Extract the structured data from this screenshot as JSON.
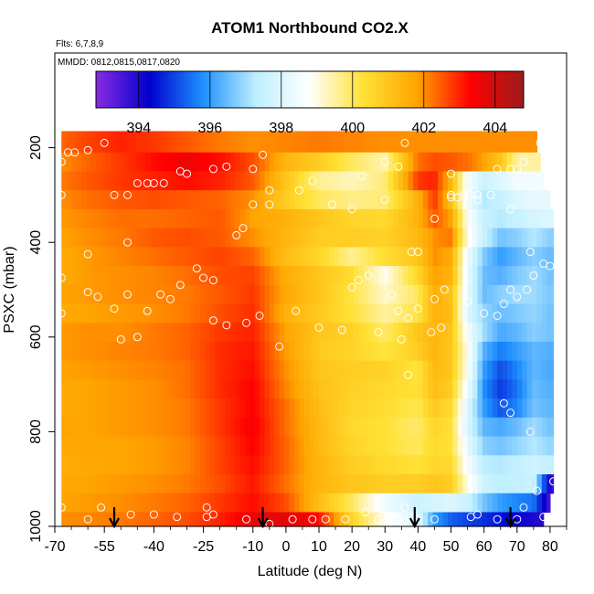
{
  "chart_data": {
    "type": "heatmap",
    "title": "ATOM1 Northbound CO2.X",
    "subtitle_flights": "Flts: 6,7,8,9",
    "subtitle_dates": "MMDD: 0812,0815,0817,0820",
    "xlabel": "Latitude (deg N)",
    "ylabel": "PSXC (mbar)",
    "xlim": [
      -70,
      85
    ],
    "ylim": [
      1000,
      0
    ],
    "x_ticks": [
      -70,
      -55,
      -40,
      -25,
      -10,
      0,
      10,
      20,
      30,
      40,
      50,
      60,
      70,
      80
    ],
    "y_ticks": [
      200,
      400,
      600,
      800,
      1000
    ],
    "colorbar": {
      "min": 392.8,
      "max": 404.8,
      "ticks": [
        394,
        396,
        398,
        400,
        402,
        404
      ],
      "colors": [
        "#8a2be2",
        "#0000cd",
        "#1e90ff",
        "#bfefff",
        "#ffffff",
        "#ffe135",
        "#ffa500",
        "#ff0000",
        "#9b1c1c"
      ]
    },
    "pressure_levels": [
      190,
      230,
      270,
      310,
      350,
      390,
      430,
      470,
      510,
      550,
      590,
      630,
      670,
      710,
      750,
      790,
      830,
      870,
      910,
      950,
      990
    ],
    "latitude_knots": [
      -68,
      -60,
      -50,
      -40,
      -30,
      -20,
      -10,
      0,
      10,
      20,
      30,
      40,
      45,
      50,
      55,
      60,
      65,
      70,
      75,
      80
    ],
    "co2_rows": [
      [
        402.4,
        402.7,
        403.0,
        402.8,
        402.5,
        402.2,
        402.0,
        402.1,
        402.2,
        402.1,
        402.0,
        402.0,
        402.0,
        402.0,
        402.0,
        402.0,
        402.0,
        402.0,
        402.0,
        402.0
      ],
      [
        402.0,
        402.4,
        402.8,
        403.2,
        403.5,
        403.2,
        402.6,
        401.4,
        400.8,
        400.0,
        399.4,
        402.3,
        402.6,
        402.5,
        402.3,
        401.8,
        401.0,
        399.5,
        399.5,
        399.5
      ],
      [
        402.2,
        402.5,
        402.8,
        403.0,
        403.2,
        403.0,
        402.5,
        401.0,
        399.6,
        399.3,
        399.8,
        402.8,
        403.0,
        401.4,
        398.6,
        397.6,
        398.0,
        398.5,
        398.5,
        398.5
      ],
      [
        402.0,
        402.3,
        402.5,
        402.6,
        402.5,
        402.4,
        402.0,
        400.8,
        400.0,
        399.7,
        399.8,
        401.5,
        402.8,
        401.2,
        398.5,
        397.2,
        397.5,
        398.0,
        398.2,
        398.2
      ],
      [
        401.9,
        402.1,
        402.3,
        402.3,
        402.4,
        402.5,
        401.8,
        401.5,
        401.0,
        400.6,
        400.5,
        401.5,
        402.5,
        401.8,
        398.8,
        397.5,
        397.2,
        397.5,
        397.8,
        398.0
      ],
      [
        401.8,
        402.0,
        402.2,
        402.5,
        402.6,
        402.5,
        402.0,
        401.4,
        400.8,
        400.8,
        400.7,
        401.3,
        402.0,
        402.2,
        399.0,
        397.5,
        396.6,
        396.8,
        397.2,
        396.8
      ],
      [
        401.7,
        401.9,
        402.1,
        402.3,
        402.5,
        402.7,
        402.4,
        401.2,
        400.6,
        399.6,
        400.4,
        401.0,
        402.0,
        401.7,
        398.4,
        396.7,
        396.0,
        396.4,
        396.8,
        396.5
      ],
      [
        401.7,
        401.9,
        402.0,
        402.1,
        402.3,
        402.6,
        402.7,
        401.6,
        401.0,
        400.4,
        398.9,
        400.6,
        401.8,
        401.5,
        398.3,
        396.5,
        396.3,
        396.7,
        397.0,
        396.6
      ],
      [
        401.8,
        401.9,
        402.0,
        402.1,
        402.2,
        402.5,
        402.8,
        401.7,
        401.0,
        400.2,
        399.2,
        400.0,
        401.6,
        401.1,
        398.2,
        396.5,
        396.8,
        397.0,
        397.0,
        396.7
      ],
      [
        401.7,
        401.8,
        401.9,
        402.0,
        402.2,
        402.6,
        402.9,
        401.5,
        400.9,
        400.3,
        399.5,
        400.2,
        401.5,
        401.2,
        398.0,
        396.9,
        396.5,
        396.7,
        396.9,
        396.6
      ],
      [
        401.9,
        402.0,
        402.0,
        402.2,
        402.4,
        402.8,
        403.0,
        401.8,
        401.0,
        400.7,
        399.9,
        401.0,
        401.4,
        401.0,
        398.6,
        397.0,
        396.2,
        396.4,
        396.8,
        396.6
      ],
      [
        401.9,
        402.0,
        402.1,
        402.2,
        402.4,
        402.9,
        403.1,
        401.9,
        400.9,
        400.6,
        400.2,
        400.8,
        401.4,
        401.0,
        398.9,
        396.3,
        395.6,
        396.0,
        396.4,
        396.3
      ],
      [
        401.8,
        401.9,
        402.0,
        402.1,
        402.3,
        402.9,
        403.2,
        402.0,
        401.0,
        400.8,
        400.7,
        400.2,
        401.3,
        401.0,
        398.8,
        396.0,
        395.1,
        395.7,
        396.4,
        396.2
      ],
      [
        401.7,
        401.8,
        401.9,
        402.0,
        402.3,
        402.9,
        403.3,
        402.1,
        401.1,
        400.7,
        400.5,
        400.3,
        401.2,
        400.8,
        398.5,
        395.8,
        394.9,
        395.5,
        396.5,
        396.3
      ],
      [
        401.7,
        401.8,
        401.9,
        402.0,
        402.2,
        402.8,
        403.3,
        402.3,
        401.2,
        400.6,
        400.4,
        400.1,
        400.9,
        400.5,
        398.0,
        396.0,
        395.2,
        395.7,
        396.6,
        396.4
      ],
      [
        401.8,
        401.8,
        401.9,
        402.0,
        402.2,
        402.8,
        403.4,
        402.3,
        401.3,
        400.5,
        400.3,
        399.9,
        400.6,
        400.3,
        397.9,
        396.4,
        396.2,
        396.5,
        397.0,
        396.6
      ],
      [
        401.7,
        401.8,
        401.8,
        401.9,
        402.1,
        402.7,
        403.3,
        402.4,
        401.3,
        400.6,
        400.3,
        400.0,
        400.5,
        400.3,
        398.2,
        396.8,
        396.6,
        396.9,
        397.2,
        396.9
      ],
      [
        401.6,
        401.7,
        401.8,
        401.9,
        402.1,
        402.7,
        403.2,
        402.4,
        401.4,
        400.8,
        400.5,
        400.3,
        400.6,
        400.5,
        398.6,
        397.3,
        397.2,
        397.4,
        397.7,
        397.4
      ],
      [
        401.7,
        401.8,
        401.9,
        402.0,
        402.2,
        402.6,
        403.1,
        402.3,
        401.4,
        401.0,
        400.8,
        400.8,
        401.0,
        400.8,
        399.0,
        397.6,
        397.3,
        397.4,
        397.6,
        393.8
      ],
      [
        401.8,
        401.9,
        402.0,
        402.2,
        402.4,
        402.8,
        403.2,
        402.6,
        401.2,
        400.0,
        398.4,
        397.6,
        397.8,
        398.0,
        397.6,
        396.6,
        396.0,
        395.7,
        395.5,
        393.5
      ],
      [
        402.0,
        402.1,
        402.2,
        402.4,
        402.6,
        403.0,
        403.6,
        403.7,
        403.2,
        400.6,
        398.9,
        398.0,
        396.0,
        395.3,
        395.0,
        394.8,
        394.5,
        394.2,
        394.0,
        393.8
      ]
    ],
    "sample_points": [
      [
        -68,
        230
      ],
      [
        -66,
        210
      ],
      [
        -64,
        210
      ],
      [
        -60,
        205
      ],
      [
        -55,
        190
      ],
      [
        -68,
        300
      ],
      [
        -52,
        300
      ],
      [
        -48,
        300
      ],
      [
        -45,
        275
      ],
      [
        -42,
        275
      ],
      [
        -40,
        275
      ],
      [
        -37,
        275
      ],
      [
        -32,
        250
      ],
      [
        -30,
        255
      ],
      [
        -22,
        245
      ],
      [
        -18,
        240
      ],
      [
        -7,
        215
      ],
      [
        -10,
        245
      ],
      [
        -5,
        290
      ],
      [
        4,
        290
      ],
      [
        8,
        270
      ],
      [
        30,
        230
      ],
      [
        34,
        240
      ],
      [
        23,
        260
      ],
      [
        36,
        190
      ],
      [
        50,
        255
      ],
      [
        50,
        305
      ],
      [
        52,
        305
      ],
      [
        54,
        300
      ],
      [
        56,
        300
      ],
      [
        58,
        300
      ],
      [
        62,
        300
      ],
      [
        64,
        245
      ],
      [
        68,
        245
      ],
      [
        70,
        245
      ],
      [
        72,
        230
      ],
      [
        77,
        190
      ],
      [
        -60,
        425
      ],
      [
        -68,
        475
      ],
      [
        -48,
        400
      ],
      [
        -38,
        510
      ],
      [
        -32,
        490
      ],
      [
        -27,
        455
      ],
      [
        -25,
        475
      ],
      [
        -22,
        480
      ],
      [
        -15,
        385
      ],
      [
        -13,
        370
      ],
      [
        -10,
        320
      ],
      [
        -5,
        320
      ],
      [
        14,
        320
      ],
      [
        20,
        330
      ],
      [
        30,
        310
      ],
      [
        38,
        420
      ],
      [
        40,
        420
      ],
      [
        45,
        350
      ],
      [
        50,
        300
      ],
      [
        58,
        310
      ],
      [
        68,
        330
      ],
      [
        74,
        420
      ],
      [
        80,
        450
      ],
      [
        -68,
        550
      ],
      [
        -60,
        505
      ],
      [
        -57,
        515
      ],
      [
        -52,
        540
      ],
      [
        -48,
        510
      ],
      [
        -42,
        545
      ],
      [
        -35,
        520
      ],
      [
        -22,
        565
      ],
      [
        -18,
        575
      ],
      [
        -12,
        570
      ],
      [
        -8,
        555
      ],
      [
        3,
        545
      ],
      [
        10,
        580
      ],
      [
        17,
        585
      ],
      [
        20,
        495
      ],
      [
        22,
        480
      ],
      [
        25,
        470
      ],
      [
        32,
        510
      ],
      [
        34,
        545
      ],
      [
        37,
        560
      ],
      [
        40,
        540
      ],
      [
        45,
        520
      ],
      [
        48,
        500
      ],
      [
        55,
        525
      ],
      [
        60,
        550
      ],
      [
        64,
        555
      ],
      [
        66,
        530
      ],
      [
        68,
        500
      ],
      [
        70,
        515
      ],
      [
        73,
        500
      ],
      [
        75,
        470
      ],
      [
        78,
        445
      ],
      [
        -50,
        605
      ],
      [
        -45,
        600
      ],
      [
        -2,
        620
      ],
      [
        28,
        590
      ],
      [
        35,
        605
      ],
      [
        37,
        680
      ],
      [
        44,
        590
      ],
      [
        47,
        580
      ],
      [
        66,
        740
      ],
      [
        68,
        760
      ],
      [
        74,
        800
      ],
      [
        81,
        905
      ],
      [
        -68,
        960
      ],
      [
        -60,
        985
      ],
      [
        -56,
        960
      ],
      [
        -47,
        975
      ],
      [
        -40,
        975
      ],
      [
        -33,
        980
      ],
      [
        -24,
        960
      ],
      [
        -24,
        980
      ],
      [
        -22,
        975
      ],
      [
        -12,
        985
      ],
      [
        -5,
        995
      ],
      [
        2,
        985
      ],
      [
        8,
        985
      ],
      [
        12,
        985
      ],
      [
        18,
        985
      ],
      [
        24,
        970
      ],
      [
        28,
        985
      ],
      [
        34,
        985
      ],
      [
        36,
        960
      ],
      [
        40,
        985
      ],
      [
        45,
        985
      ],
      [
        56,
        980
      ],
      [
        58,
        975
      ],
      [
        64,
        985
      ],
      [
        70,
        985
      ],
      [
        72,
        960
      ],
      [
        76,
        925
      ],
      [
        78,
        980
      ]
    ],
    "arrows_latitude": [
      -52,
      -7,
      39,
      68
    ]
  }
}
